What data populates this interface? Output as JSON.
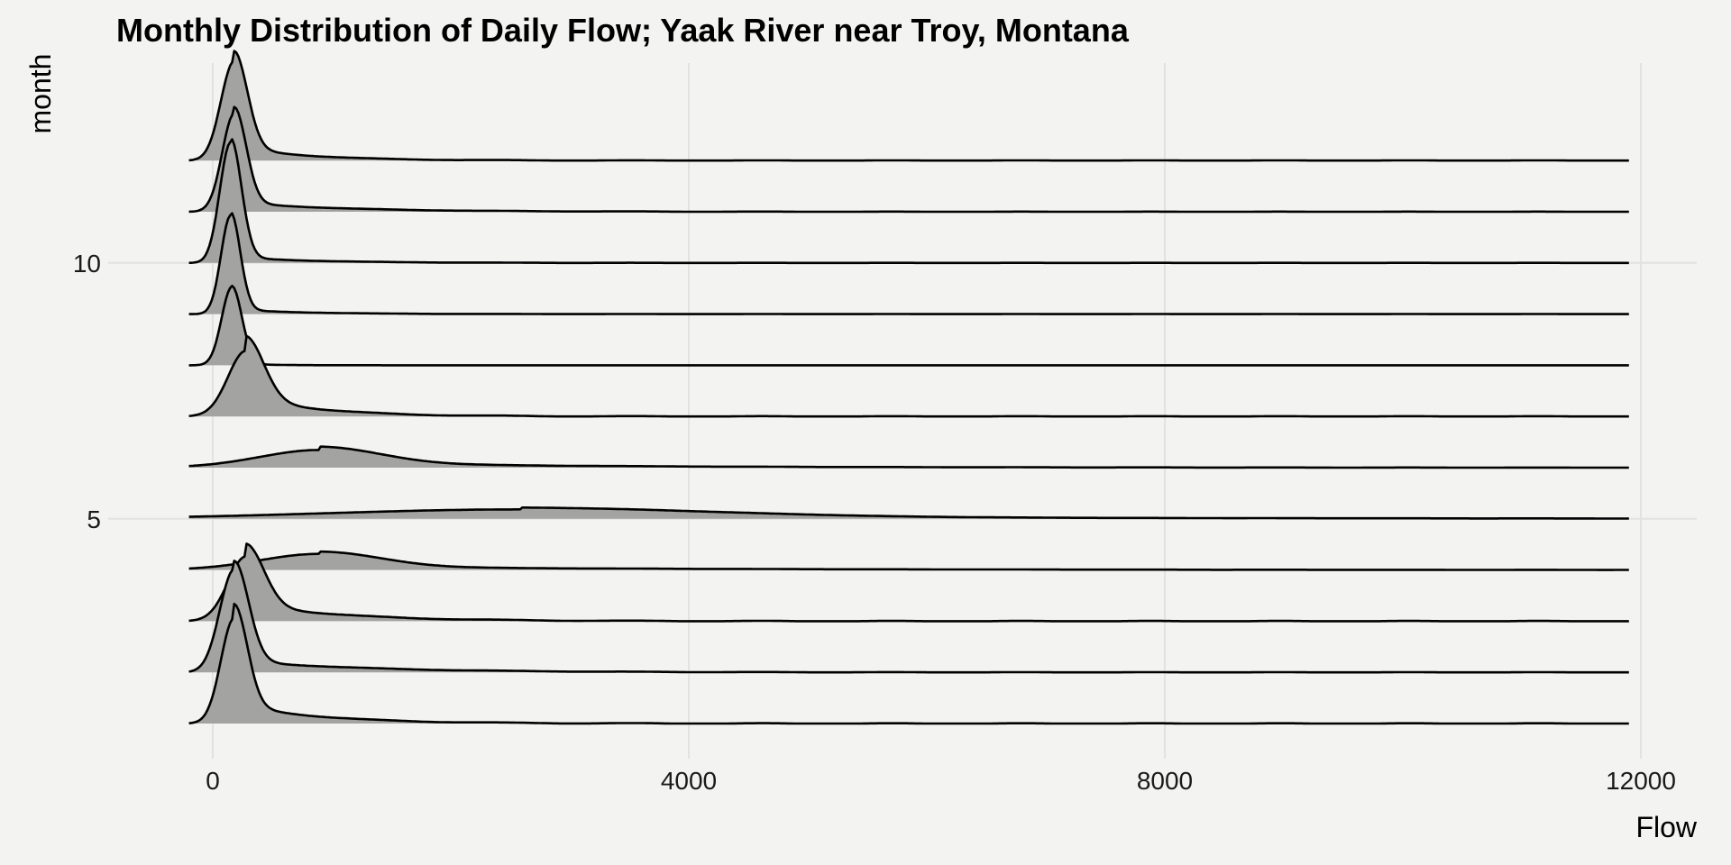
{
  "chart_data": {
    "type": "ridgeline",
    "title": "Monthly Distribution of Daily Flow; Yaak River near Troy, Montana",
    "xlabel": "Flow",
    "ylabel": "month",
    "xlim": [
      -300,
      12500
    ],
    "x_ticks": [
      0,
      4000,
      8000,
      12000
    ],
    "y_ticks": [
      5,
      10
    ],
    "x_range": [
      -200,
      11900
    ],
    "grid": true,
    "fill_color": "#a3a3a1",
    "line_color": "#000000",
    "background": "#f3f3f1",
    "series": [
      {
        "month": 1,
        "peak": 180,
        "height": 0.92,
        "sigma": 110,
        "tail": 0.2,
        "tail_scale": 700
      },
      {
        "month": 2,
        "peak": 180,
        "height": 0.92,
        "sigma": 120,
        "tail": 0.12,
        "tail_scale": 1100
      },
      {
        "month": 3,
        "peak": 280,
        "height": 0.55,
        "sigma": 150,
        "tail": 0.3,
        "tail_scale": 800
      },
      {
        "month": 4,
        "peak": 900,
        "height": 0.14,
        "sigma": 500,
        "tail": 0.22,
        "tail_scale": 3000
      },
      {
        "month": 5,
        "peak": 2600,
        "height": 0.08,
        "sigma": 1600,
        "tail": 0.3,
        "tail_scale": 4500
      },
      {
        "month": 6,
        "peak": 900,
        "height": 0.15,
        "sigma": 500,
        "tail": 0.3,
        "tail_scale": 2200
      },
      {
        "month": 7,
        "peak": 280,
        "height": 0.55,
        "sigma": 150,
        "tail": 0.35,
        "tail_scale": 600
      },
      {
        "month": 8,
        "peak": 160,
        "height": 0.72,
        "sigma": 85,
        "tail": 0.02,
        "tail_scale": 300
      },
      {
        "month": 9,
        "peak": 150,
        "height": 0.9,
        "sigma": 80,
        "tail": 0.05,
        "tail_scale": 600
      },
      {
        "month": 10,
        "peak": 150,
        "height": 1.1,
        "sigma": 90,
        "tail": 0.05,
        "tail_scale": 700
      },
      {
        "month": 11,
        "peak": 180,
        "height": 0.88,
        "sigma": 100,
        "tail": 0.1,
        "tail_scale": 900
      },
      {
        "month": 12,
        "peak": 180,
        "height": 0.88,
        "sigma": 110,
        "tail": 0.15,
        "tail_scale": 600
      }
    ]
  }
}
